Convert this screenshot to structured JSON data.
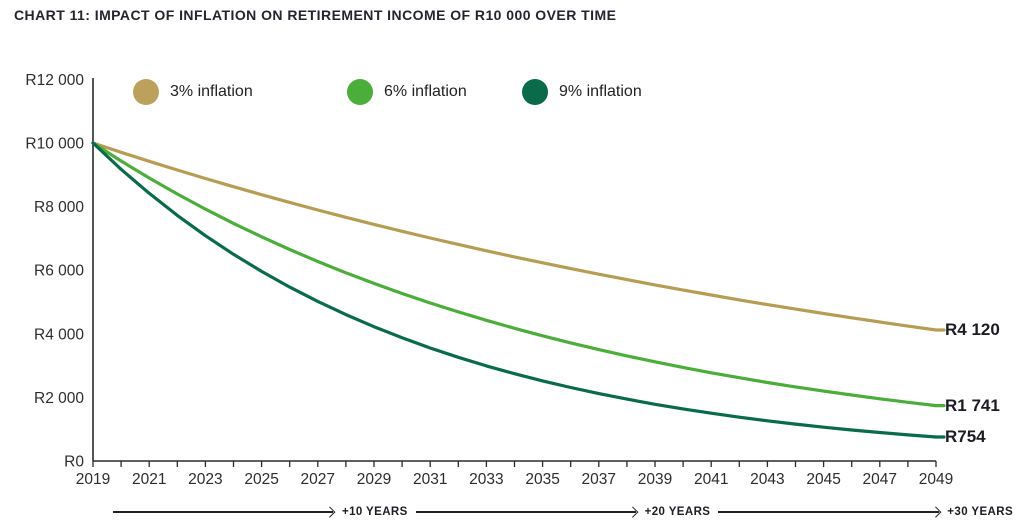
{
  "title": "CHART 11: IMPACT OF INFLATION ON RETIREMENT INCOME OF R10 000 OVER TIME",
  "colors": {
    "axis": "#2b2b2b",
    "tick_text": "#2d2d2d",
    "series_gold": "#b79d54",
    "series_light_green": "#4bad3a",
    "series_dark_green": "#0a6b4a"
  },
  "legend": {
    "items": [
      {
        "label": "3% inflation",
        "color": "#bba15c"
      },
      {
        "label": "6% inflation",
        "color": "#4bad3a"
      },
      {
        "label": "9% inflation",
        "color": "#0a6b4a"
      }
    ]
  },
  "chart_data": {
    "type": "line",
    "title": "CHART 11: IMPACT OF INFLATION ON RETIREMENT INCOME OF R10 000 OVER TIME",
    "xlabel": "",
    "ylabel": "",
    "xlim": [
      2019,
      2049
    ],
    "ylim": [
      0,
      12000
    ],
    "grid": false,
    "legend_position": "top",
    "x": [
      2019,
      2020,
      2021,
      2022,
      2023,
      2024,
      2025,
      2026,
      2027,
      2028,
      2029,
      2030,
      2031,
      2032,
      2033,
      2034,
      2035,
      2036,
      2037,
      2038,
      2039,
      2040,
      2041,
      2042,
      2043,
      2044,
      2045,
      2046,
      2047,
      2048,
      2049
    ],
    "x_tick_labels": [
      "2019",
      "2021",
      "2023",
      "2025",
      "2027",
      "2029",
      "2031",
      "2033",
      "2035",
      "2037",
      "2039",
      "2041",
      "2043",
      "2045",
      "2047",
      "2049"
    ],
    "y_tick_labels": [
      "R0",
      "R2 000",
      "R4 000",
      "R6 000",
      "R8 000",
      "R10 000",
      "R12 000"
    ],
    "y_tick_values": [
      0,
      2000,
      4000,
      6000,
      8000,
      10000,
      12000
    ],
    "series": [
      {
        "name": "3% inflation",
        "color": "#b79d54",
        "end_label": "R4 120",
        "values": [
          10000,
          9709,
          9426,
          9151,
          8885,
          8626,
          8375,
          8131,
          7894,
          7664,
          7441,
          7224,
          7014,
          6810,
          6611,
          6419,
          6232,
          6050,
          5874,
          5703,
          5537,
          5375,
          5219,
          5067,
          4919,
          4776,
          4637,
          4502,
          4371,
          4243,
          4120
        ]
      },
      {
        "name": "6% inflation",
        "color": "#4bad3a",
        "end_label": "R1 741",
        "values": [
          10000,
          9434,
          8900,
          8396,
          7921,
          7473,
          7050,
          6651,
          6274,
          5919,
          5584,
          5268,
          4970,
          4688,
          4423,
          4173,
          3936,
          3714,
          3503,
          3305,
          3118,
          2942,
          2775,
          2618,
          2470,
          2330,
          2198,
          2074,
          1956,
          1846,
          1741
        ]
      },
      {
        "name": "9% inflation",
        "color": "#0a6b4a",
        "end_label": "R754",
        "values": [
          10000,
          9174,
          8417,
          7722,
          7084,
          6499,
          5963,
          5470,
          5019,
          4604,
          4224,
          3875,
          3555,
          3262,
          2992,
          2745,
          2519,
          2311,
          2120,
          1945,
          1784,
          1637,
          1502,
          1378,
          1264,
          1160,
          1064,
          976,
          895,
          822,
          754
        ]
      }
    ],
    "annotations": [
      "+10 YEARS",
      "+20 YEARS",
      "+30 YEARS"
    ]
  }
}
